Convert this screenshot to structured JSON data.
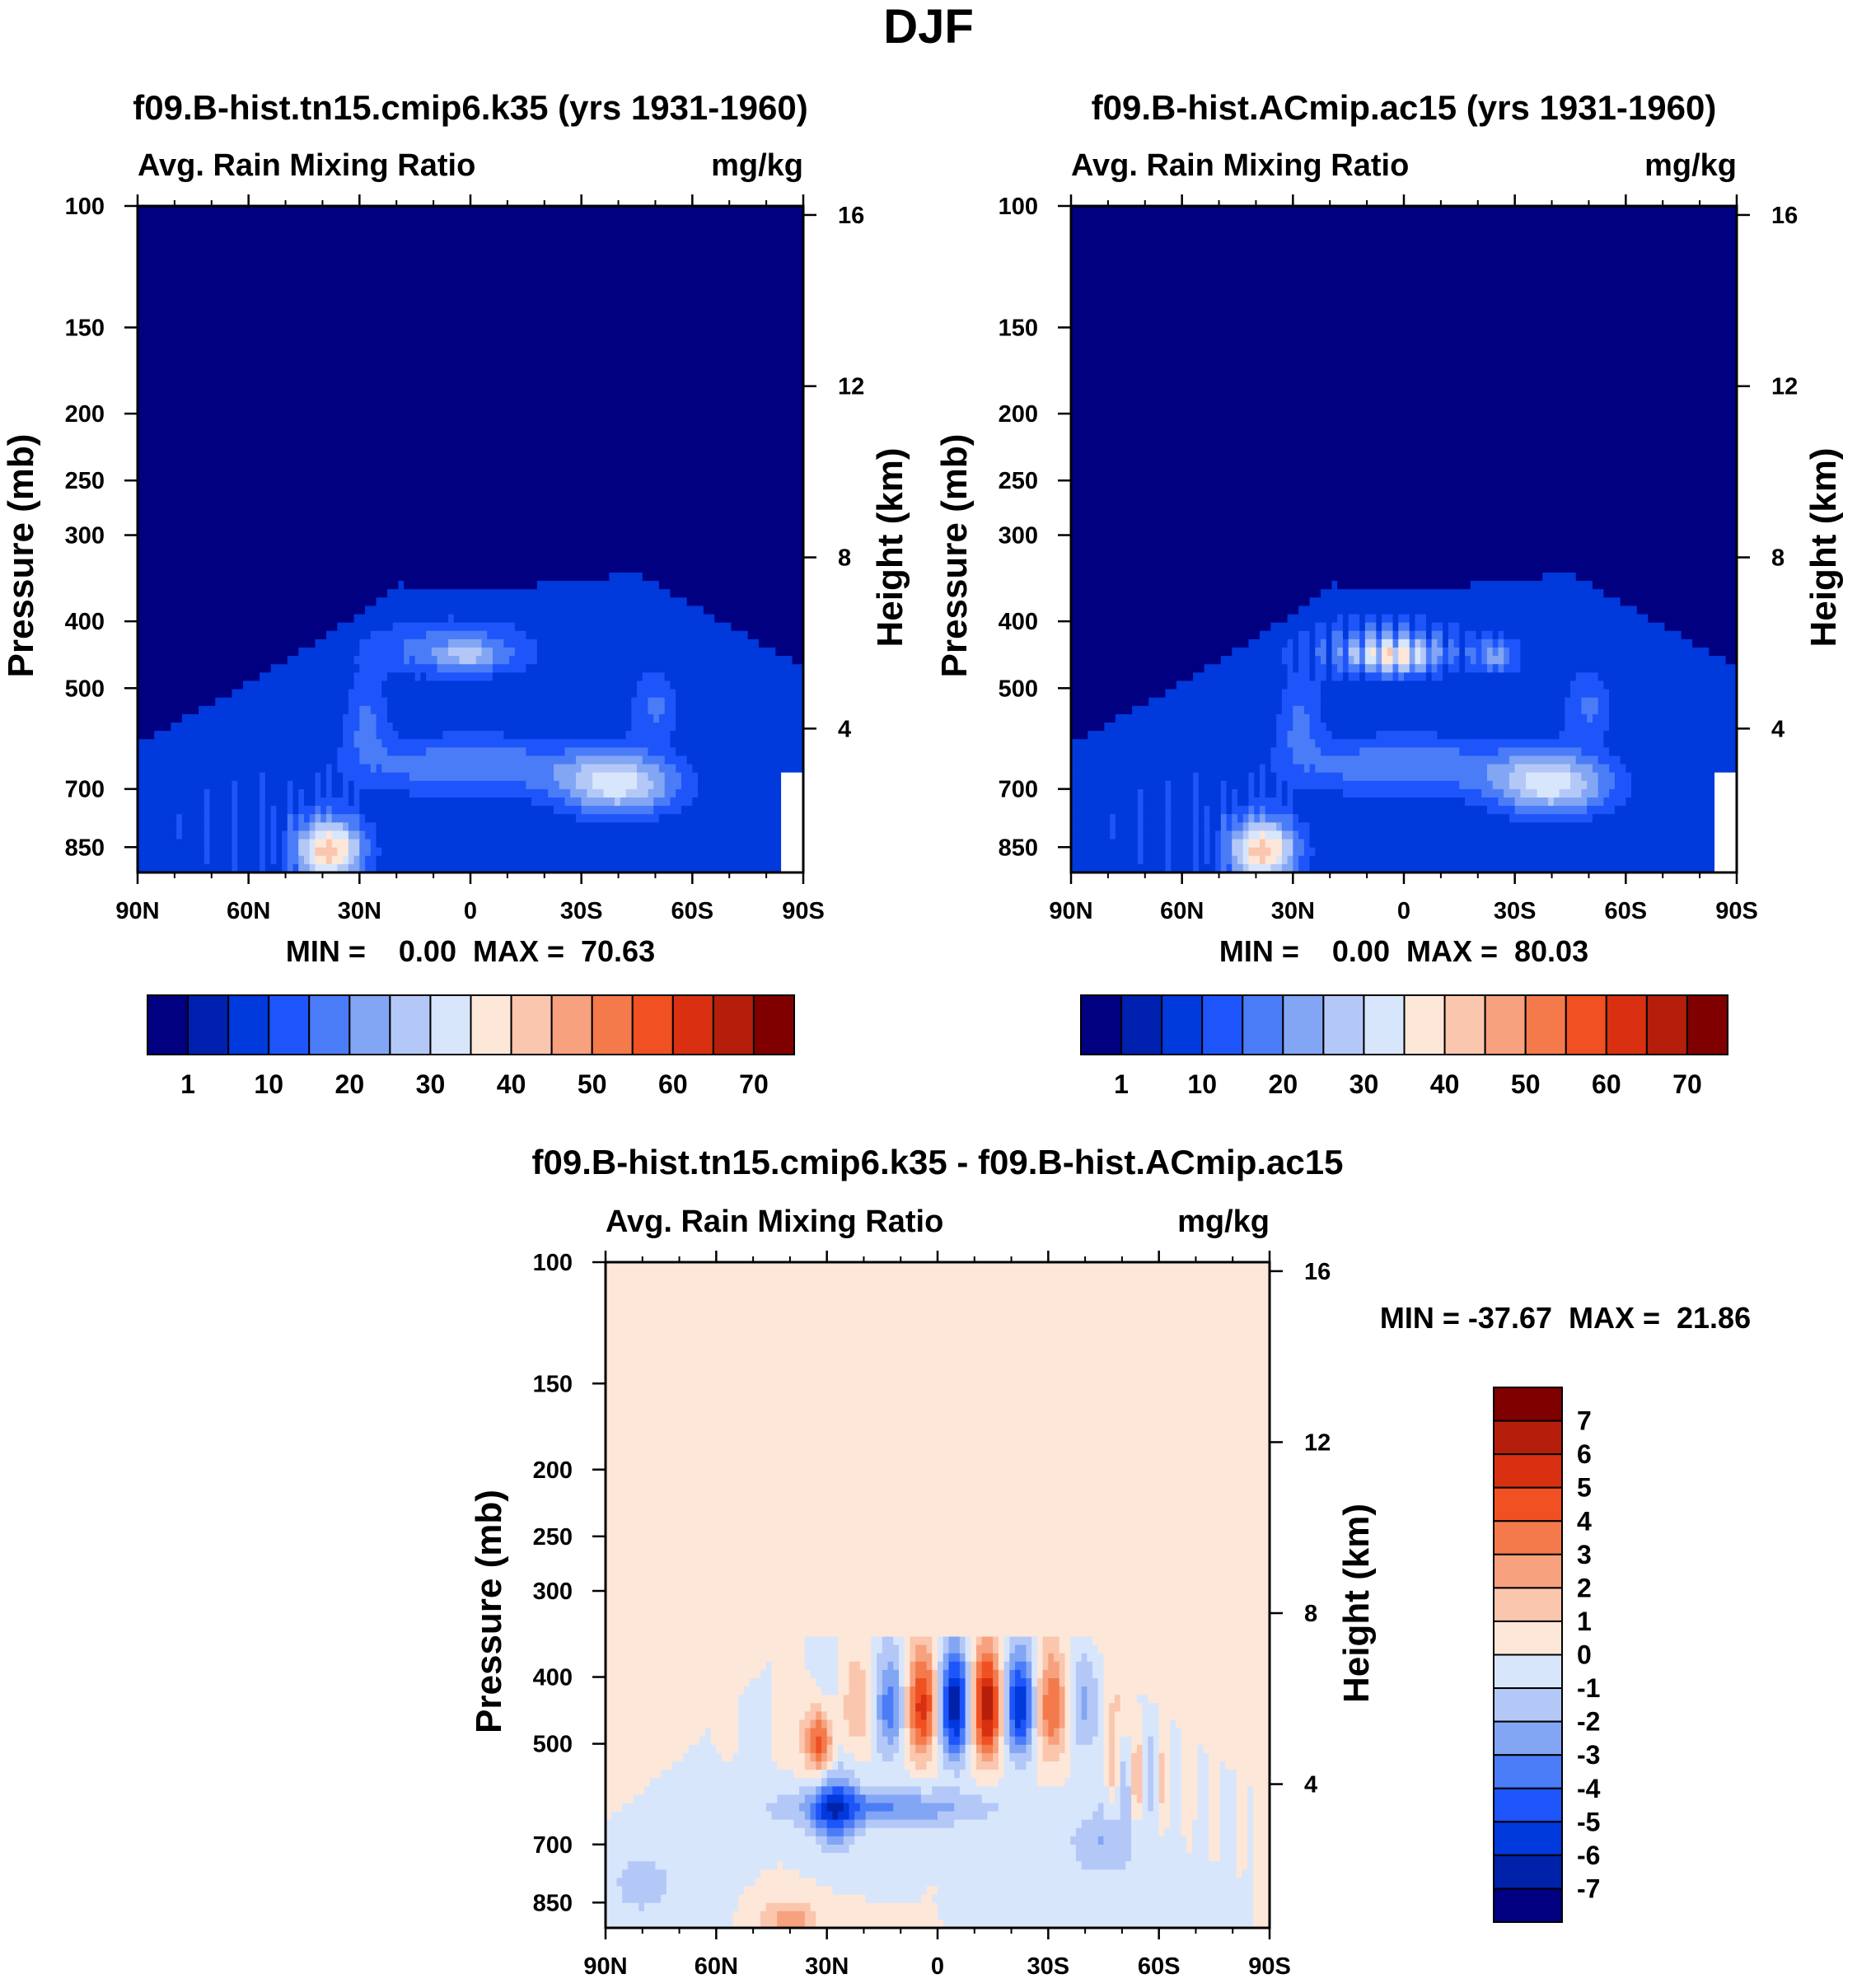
{
  "figure_title": "DJF",
  "colors": {
    "abs_scale": [
      "#000080",
      "#0020b0",
      "#0039dc",
      "#1e55fa",
      "#4b7cf8",
      "#82a6f4",
      "#b4c8f8",
      "#d8e6fc",
      "#fde7d8",
      "#fbc6ae",
      "#f7a17e",
      "#f47a4c",
      "#f05022",
      "#d83010",
      "#b41e0a",
      "#800000"
    ],
    "diff_scale": [
      "#000080",
      "#0021aa",
      "#0039dc",
      "#1e55fa",
      "#4b7cf8",
      "#82a6f4",
      "#b4c8f8",
      "#d8e6fc",
      "#fde7d8",
      "#fbc6ae",
      "#f7a17e",
      "#f47a4c",
      "#f05022",
      "#d83010",
      "#b41e0a",
      "#800000"
    ]
  },
  "chart_data": [
    {
      "type": "heatmap",
      "title": "f09.B-hist.tn15.cmip6.k35 (yrs 1931-1960)",
      "left_subtitle": "Avg. Rain Mixing Ratio",
      "right_subtitle": "mg/kg",
      "ylabel": "Pressure (mb)",
      "ylabel_right": "Height (km)",
      "x_ticks": [
        "90N",
        "60N",
        "30N",
        "0",
        "30S",
        "60S",
        "90S"
      ],
      "y_ticks": [
        "100",
        "150",
        "200",
        "250",
        "300",
        "400",
        "500",
        "700",
        "850"
      ],
      "y2_ticks": [
        "16",
        "12",
        "8",
        "4"
      ],
      "xlim": [
        90,
        -90
      ],
      "ylim": [
        100,
        925
      ],
      "min_max_text": "MIN =    0.00  MAX =  70.63",
      "min": 0.0,
      "max": 70.63,
      "colorbar": {
        "orientation": "horizontal",
        "labels": [
          "1",
          "10",
          "20",
          "30",
          "40",
          "50",
          "60",
          "70"
        ]
      }
    },
    {
      "type": "heatmap",
      "title": "f09.B-hist.ACmip.ac15 (yrs 1931-1960)",
      "left_subtitle": "Avg. Rain Mixing Ratio",
      "right_subtitle": "mg/kg",
      "ylabel": "Pressure (mb)",
      "ylabel_right": "Height (km)",
      "x_ticks": [
        "90N",
        "60N",
        "30N",
        "0",
        "30S",
        "60S",
        "90S"
      ],
      "y_ticks": [
        "100",
        "150",
        "200",
        "250",
        "300",
        "400",
        "500",
        "700",
        "850"
      ],
      "y2_ticks": [
        "16",
        "12",
        "8",
        "4"
      ],
      "xlim": [
        90,
        -90
      ],
      "ylim": [
        100,
        925
      ],
      "min_max_text": "MIN =    0.00  MAX =  80.03",
      "min": 0.0,
      "max": 80.03,
      "colorbar": {
        "orientation": "horizontal",
        "labels": [
          "1",
          "10",
          "20",
          "30",
          "40",
          "50",
          "60",
          "70"
        ]
      }
    },
    {
      "type": "heatmap",
      "title": "f09.B-hist.tn15.cmip6.k35 - f09.B-hist.ACmip.ac15",
      "left_subtitle": "Avg. Rain Mixing Ratio",
      "right_subtitle": "mg/kg",
      "ylabel": "Pressure (mb)",
      "ylabel_right": "Height (km)",
      "x_ticks": [
        "90N",
        "60N",
        "30N",
        "0",
        "30S",
        "60S",
        "90S"
      ],
      "y_ticks": [
        "100",
        "150",
        "200",
        "250",
        "300",
        "400",
        "500",
        "700",
        "850"
      ],
      "y2_ticks": [
        "16",
        "12",
        "8",
        "4"
      ],
      "xlim": [
        90,
        -90
      ],
      "ylim": [
        100,
        925
      ],
      "min_max_text": "MIN = -37.67  MAX =  21.86",
      "min": -37.67,
      "max": 21.86,
      "colorbar": {
        "orientation": "vertical",
        "labels": [
          "7",
          "6",
          "5",
          "4",
          "3",
          "2",
          "1",
          "0",
          "-1",
          "-2",
          "-3",
          "-4",
          "-5",
          "-6",
          "-7"
        ]
      }
    }
  ]
}
